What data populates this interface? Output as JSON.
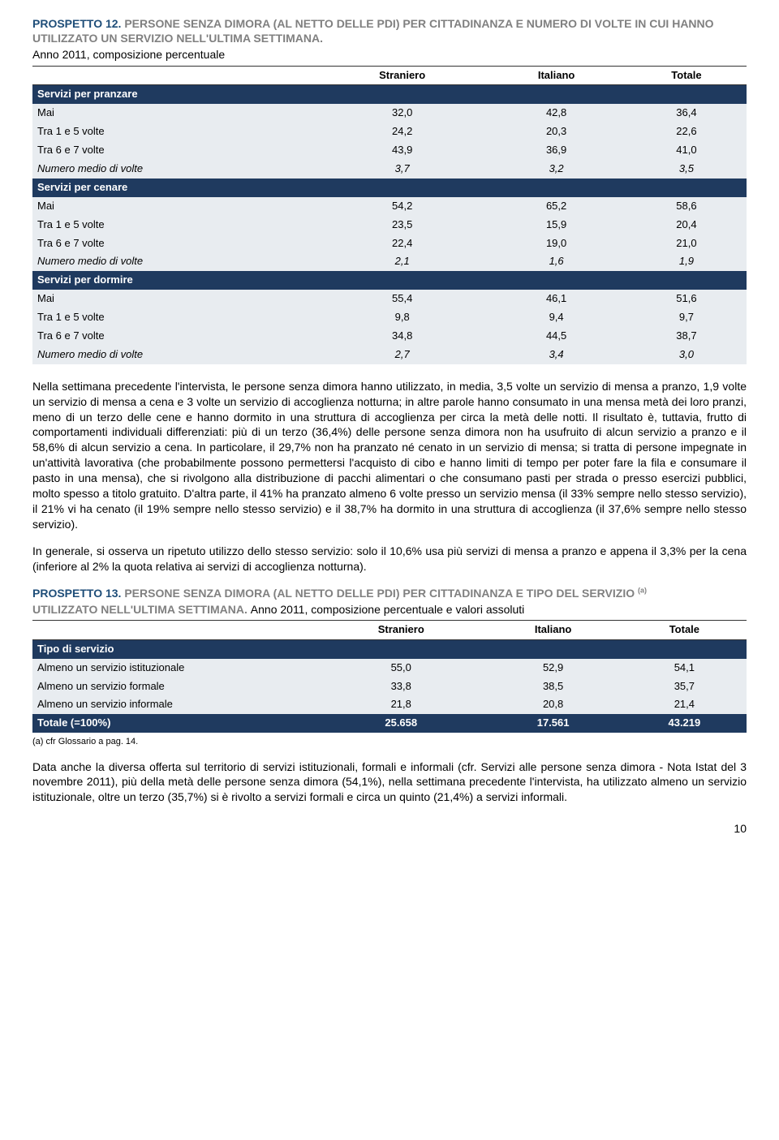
{
  "prospetto12": {
    "title_prefix": "PROSPETTO 12.",
    "title_gray": "PERSONE SENZA DIMORA (AL NETTO DELLE PDI) PER CITTADINANZA E NUMERO DI VOLTE IN CUI HANNO UTILIZZATO UN SERVIZIO NELL'ULTIMA SETTIMANA.",
    "title_black": "Anno 2011, composizione percentuale",
    "columns": [
      "",
      "Straniero",
      "Italiano",
      "Totale"
    ],
    "groups": [
      {
        "header": "Servizi per pranzare",
        "rows": [
          {
            "label": "Mai",
            "v": [
              "32,0",
              "42,8",
              "36,4"
            ],
            "italic": false
          },
          {
            "label": "Tra 1 e 5 volte",
            "v": [
              "24,2",
              "20,3",
              "22,6"
            ],
            "italic": false
          },
          {
            "label": "Tra 6 e 7 volte",
            "v": [
              "43,9",
              "36,9",
              "41,0"
            ],
            "italic": false
          },
          {
            "label": "Numero medio di volte",
            "v": [
              "3,7",
              "3,2",
              "3,5"
            ],
            "italic": true
          }
        ]
      },
      {
        "header": "Servizi per cenare",
        "rows": [
          {
            "label": "Mai",
            "v": [
              "54,2",
              "65,2",
              "58,6"
            ],
            "italic": false
          },
          {
            "label": "Tra 1 e 5 volte",
            "v": [
              "23,5",
              "15,9",
              "20,4"
            ],
            "italic": false
          },
          {
            "label": "Tra 6 e 7 volte",
            "v": [
              "22,4",
              "19,0",
              "21,0"
            ],
            "italic": false
          },
          {
            "label": "Numero medio di volte",
            "v": [
              "2,1",
              "1,6",
              "1,9"
            ],
            "italic": true
          }
        ]
      },
      {
        "header": "Servizi per dormire",
        "rows": [
          {
            "label": "Mai",
            "v": [
              "55,4",
              "46,1",
              "51,6"
            ],
            "italic": false
          },
          {
            "label": "Tra 1 e 5 volte",
            "v": [
              "9,8",
              "9,4",
              "9,7"
            ],
            "italic": false
          },
          {
            "label": "Tra 6 e 7 volte",
            "v": [
              "34,8",
              "44,5",
              "38,7"
            ],
            "italic": false
          },
          {
            "label": "Numero medio di volte",
            "v": [
              "2,7",
              "3,4",
              "3,0"
            ],
            "italic": true
          }
        ]
      }
    ]
  },
  "para1": "Nella settimana precedente l'intervista, le persone senza dimora hanno utilizzato, in media, 3,5 volte un servizio di mensa a pranzo, 1,9 volte un servizio di mensa a cena e 3 volte un servizio di accoglienza notturna; in altre parole hanno consumato in una mensa metà dei loro pranzi, meno di un terzo delle cene e hanno dormito in una struttura di accoglienza per circa la metà delle notti. Il risultato è, tuttavia, frutto di comportamenti individuali differenziati: più di un terzo (36,4%) delle persone senza dimora non ha usufruito di alcun servizio a pranzo e il 58,6% di alcun servizio a cena. In particolare, il 29,7% non ha pranzato né cenato in un servizio di mensa; si tratta di persone impegnate in un'attività lavorativa (che probabilmente possono permettersi l'acquisto di cibo e hanno limiti di tempo per poter fare la fila e consumare il pasto in una mensa), che si rivolgono alla distribuzione di pacchi alimentari o che consumano pasti per strada o presso esercizi pubblici, molto spesso a titolo gratuito. D'altra parte, il 41% ha pranzato almeno 6 volte presso un servizio mensa (il 33% sempre nello stesso servizio), il 21% vi ha cenato (il 19% sempre nello stesso servizio) e il 38,7% ha dormito in una struttura di accoglienza (il 37,6% sempre nello stesso servizio).",
  "para2": "In generale, si osserva un ripetuto utilizzo dello stesso servizio: solo il 10,6% usa più servizi di mensa a pranzo e appena il 3,3% per la cena (inferiore al 2% la quota relativa ai servizi di accoglienza notturna).",
  "prospetto13": {
    "title_prefix": "PROSPETTO 13.",
    "title_gray": "PERSONE SENZA DIMORA (AL NETTO DELLE PDI) PER CITTADINANZA E TIPO DEL SERVIZIO",
    "title_sup": "(a)",
    "title_gray2": "UTILIZZATO NELL'ULTIMA SETTIMANA.",
    "title_black": "Anno 2011, composizione percentuale e valori assoluti",
    "columns": [
      "",
      "Straniero",
      "Italiano",
      "Totale"
    ],
    "section_header": "Tipo di servizio",
    "rows": [
      {
        "label": "Almeno un servizio istituzionale",
        "v": [
          "55,0",
          "52,9",
          "54,1"
        ]
      },
      {
        "label": "Almeno un servizio formale",
        "v": [
          "33,8",
          "38,5",
          "35,7"
        ]
      },
      {
        "label": "Almeno un servizio informale",
        "v": [
          "21,8",
          "20,8",
          "21,4"
        ]
      }
    ],
    "total": {
      "label": "Totale (=100%)",
      "v": [
        "25.658",
        "17.561",
        "43.219"
      ]
    },
    "footnote": "(a) cfr Glossario a pag. 14."
  },
  "para3": "Data anche la diversa offerta sul territorio di servizi istituzionali, formali e informali (cfr. Servizi alle persone senza dimora - Nota Istat del 3 novembre 2011), più della metà delle persone senza dimora (54,1%), nella settimana precedente l'intervista, ha utilizzato almeno un servizio istituzionale, oltre un terzo (35,7%) si è rivolto a servizi formali e circa un quinto (21,4%) a servizi informali.",
  "page_number": "10",
  "colors": {
    "title_blue": "#1f4e79",
    "title_gray": "#808080",
    "header_bg": "#1f3a5f",
    "row_bg": "#e8ecf0"
  }
}
